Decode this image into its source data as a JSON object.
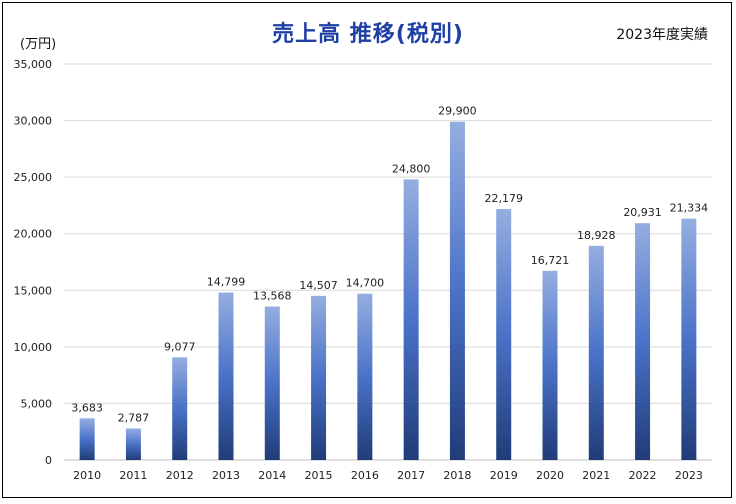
{
  "chart_data": {
    "type": "bar",
    "title": "売上高 推移(税別)",
    "subtitle": "2023年度実績",
    "ylabel": "(万円)",
    "categories": [
      "2010",
      "2011",
      "2012",
      "2013",
      "2014",
      "2015",
      "2016",
      "2017",
      "2018",
      "2019",
      "2020",
      "2021",
      "2022",
      "2023"
    ],
    "values": [
      3683,
      2787,
      9077,
      14799,
      13568,
      14507,
      14700,
      24800,
      29900,
      22179,
      16721,
      18928,
      20931,
      21334
    ],
    "value_labels": [
      "3,683",
      "2,787",
      "9,077",
      "14,799",
      "13,568",
      "14,507",
      "14,700",
      "24,800",
      "29,900",
      "22,179",
      "16,721",
      "18,928",
      "20,931",
      "21,334"
    ],
    "ylim": [
      0,
      35000
    ],
    "yticks": [
      0,
      5000,
      10000,
      15000,
      20000,
      25000,
      30000,
      35000
    ],
    "ytick_labels": [
      "0",
      "5,000",
      "10,000",
      "15,000",
      "20,000",
      "25,000",
      "30,000",
      "35,000"
    ],
    "grid": true,
    "bar_gradient": {
      "top": "#95aee0",
      "mid": "#4a72c8",
      "bottom": "#203c78"
    }
  }
}
